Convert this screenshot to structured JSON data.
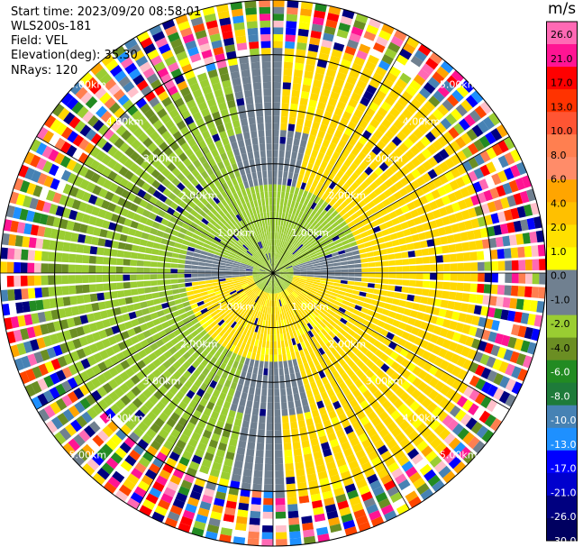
{
  "chart_data": {
    "type": "heatmap",
    "projection": "polar-ppi",
    "meta": {
      "start_time": "Start time: 2023/09/20 08:58:01",
      "instrument": "WLS200s-181",
      "field": "Field: VEL",
      "elevation": "Elevation(deg): 35.30",
      "nrays": "NRays: 120"
    },
    "n_rays": 120,
    "max_range_km": 5.0,
    "range_rings_km": [
      1,
      2,
      3,
      4,
      5
    ],
    "range_labels": [
      "1.00km",
      "2.00km",
      "3.00km",
      "4.00km",
      "5.00km"
    ],
    "colorbar": {
      "unit": "m/s",
      "ticks": [
        "26.0",
        "21.0",
        "17.0",
        "13.0",
        "10.0",
        "8.0",
        "6.0",
        "4.0",
        "2.0",
        "1.0",
        "0.0",
        "-1.0",
        "-2.0",
        "-4.0",
        "-6.0",
        "-8.0",
        "-10.0",
        "-13.0",
        "-17.0",
        "-21.0",
        "-26.0",
        "-30.0"
      ],
      "colors": [
        "#ff69b4",
        "#ff1493",
        "#ff0000",
        "#ff3300",
        "#ff5533",
        "#ff7f50",
        "#ff8c69",
        "#ffa500",
        "#ffc000",
        "#ffe000",
        "#ffff00",
        "#708090",
        "#708090",
        "#9acd32",
        "#6b8e23",
        "#228b22",
        "#1e7b3a",
        "#4682b4",
        "#1e90ff",
        "#0000ff",
        "#0000cd",
        "#000080",
        "#000060"
      ]
    }
  }
}
